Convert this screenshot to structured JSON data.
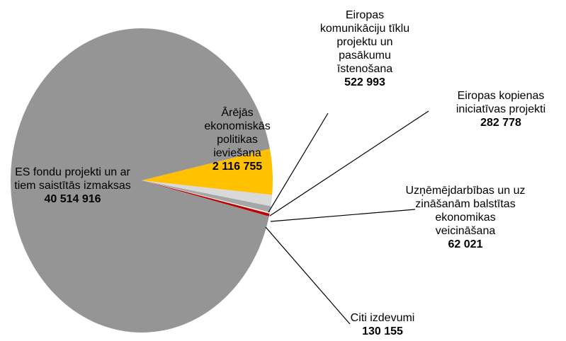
{
  "chart_data": {
    "type": "pie",
    "categories": [
      "Ārējās ekonomiskās politikas ieviešana",
      "Eiropas komunikāciju tīklu projektu un pasākumu īstenošana",
      "Eiropas kopienas iniciatīvas projekti",
      "Uzņēmējdarbības un uz zināšanām balstītas ekonomikas veicināšana",
      "Citi izdevumi",
      "ES fondu projekti un ar tiem saistītās izmaksas"
    ],
    "values": [
      2116755,
      522993,
      282778,
      62021,
      130155,
      40514916
    ],
    "value_labels": [
      "2 116 755",
      "522 993",
      "282 778",
      "62 021",
      "130 155",
      "40 514 916"
    ],
    "colors": [
      "#ffc000",
      "#d9d9d9",
      "#a6a6a6",
      "#ededed",
      "#c00000",
      "#959595"
    ]
  }
}
